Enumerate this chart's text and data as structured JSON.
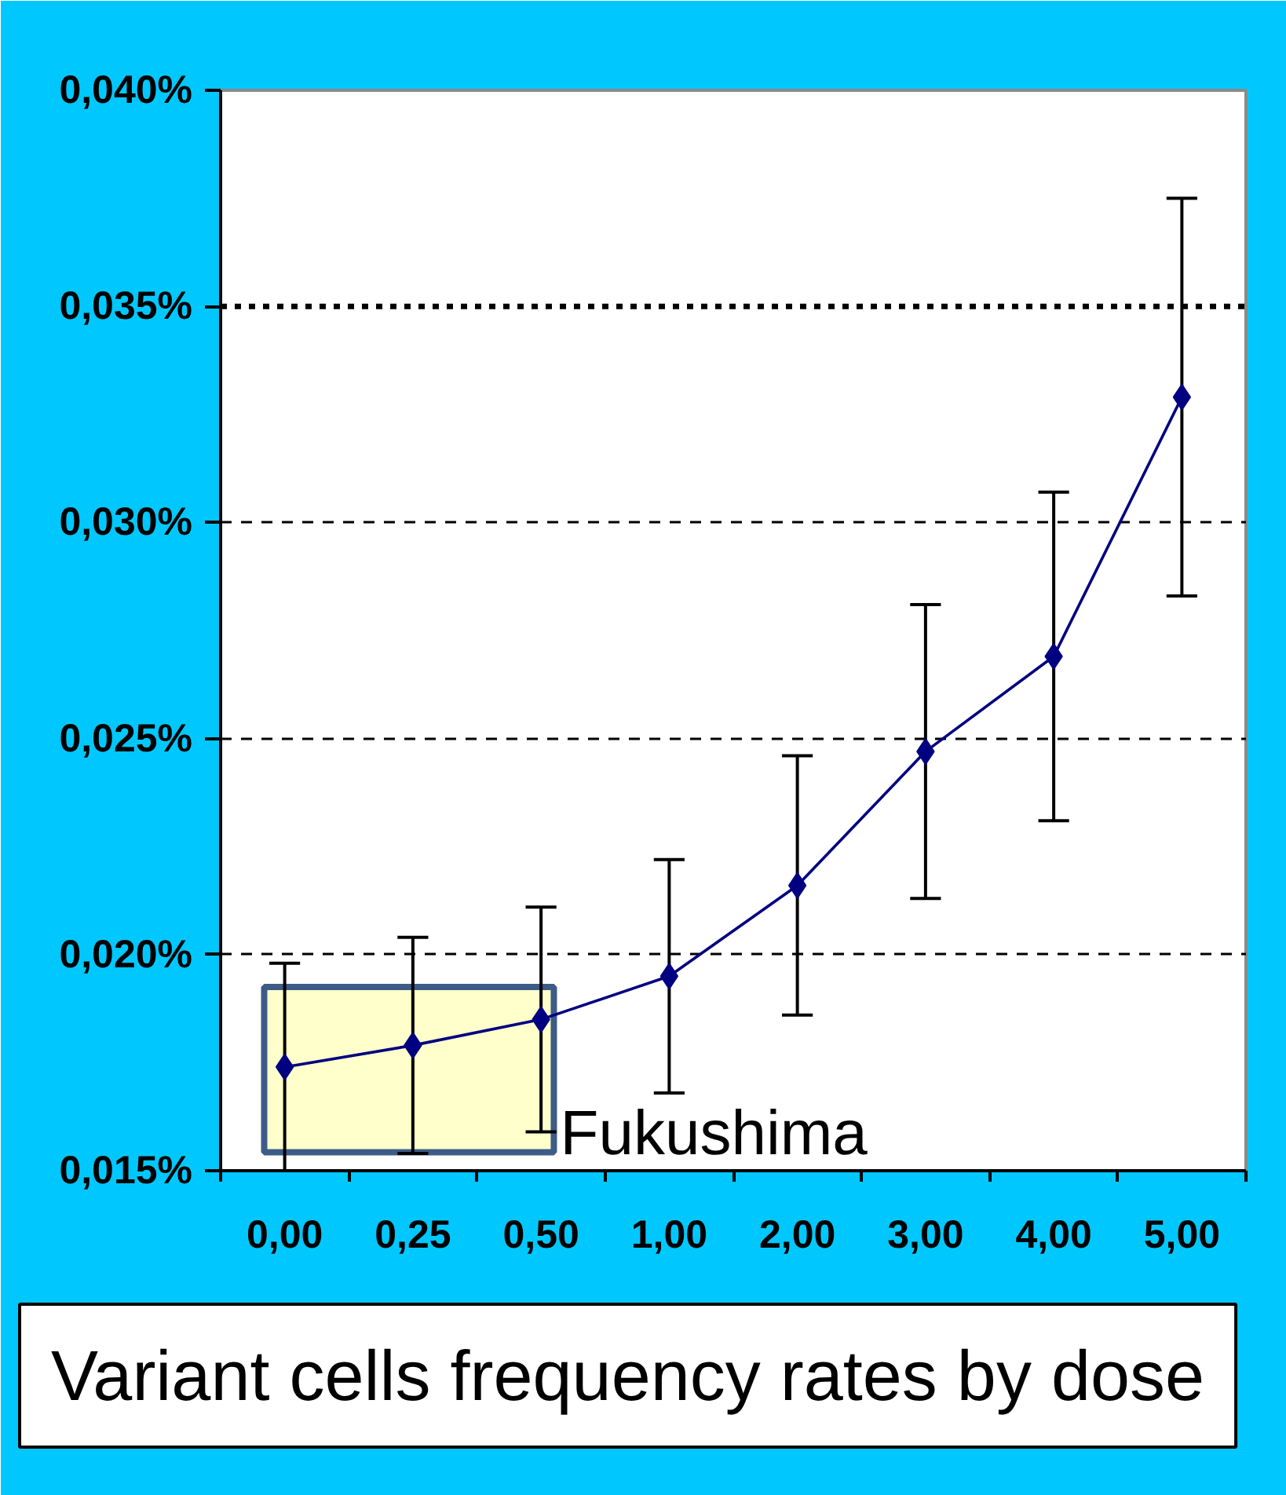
{
  "chart_data": {
    "type": "line",
    "title": "Variant cells frequency rates by dose",
    "categories": [
      "0,00",
      "0,25",
      "0,50",
      "1,00",
      "2,00",
      "3,00",
      "4,00",
      "5,00"
    ],
    "series": [
      {
        "color": "#000080",
        "values": [
          0.0174,
          0.0179,
          0.0185,
          0.0195,
          0.0216,
          0.0247,
          0.0269,
          0.0329
        ],
        "errors": [
          0.0024,
          0.0025,
          0.0026,
          0.0027,
          0.003,
          0.0034,
          0.0038,
          0.0046
        ]
      }
    ],
    "ylim": [
      0.015,
      0.04
    ],
    "yticks": [
      {
        "value": 0.015,
        "label": "0,015%"
      },
      {
        "value": 0.02,
        "label": "0,020%"
      },
      {
        "value": 0.025,
        "label": "0,025%"
      },
      {
        "value": 0.03,
        "label": "0,030%"
      },
      {
        "value": 0.035,
        "label": "0,035%"
      },
      {
        "value": 0.04,
        "label": "0,040%"
      }
    ],
    "grid": "y",
    "marker": "diamond",
    "line_style": "solid",
    "ref_lines": [
      {
        "axis": "y",
        "value": 0.035,
        "line_style": "dotted",
        "color": "#000000"
      }
    ],
    "bands": [
      {
        "axis": "x",
        "from": "0,00",
        "to": "0,50",
        "label": "Fukushima",
        "color": "#ffffcc"
      }
    ]
  }
}
